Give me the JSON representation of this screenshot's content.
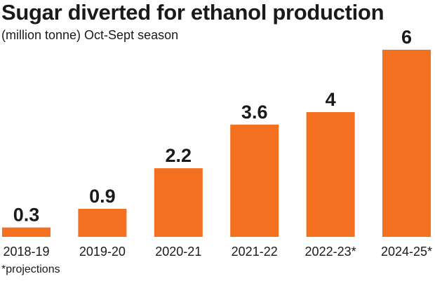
{
  "chart_data": {
    "type": "bar",
    "title": "Sugar diverted for ethanol production",
    "subtitle": "(million tonne) Oct-Sept season",
    "categories": [
      "2018-19",
      "2019-20",
      "2020-21",
      "2021-22",
      "2022-23*",
      "2024-25*"
    ],
    "values": [
      0.3,
      0.9,
      2.2,
      3.6,
      4,
      6
    ],
    "value_labels": [
      "0.3",
      "0.9",
      "2.2",
      "3.6",
      "4",
      "6"
    ],
    "ylim": [
      0,
      6
    ],
    "grid": false,
    "bar_color": "#f37021",
    "footnote": "*projections"
  }
}
